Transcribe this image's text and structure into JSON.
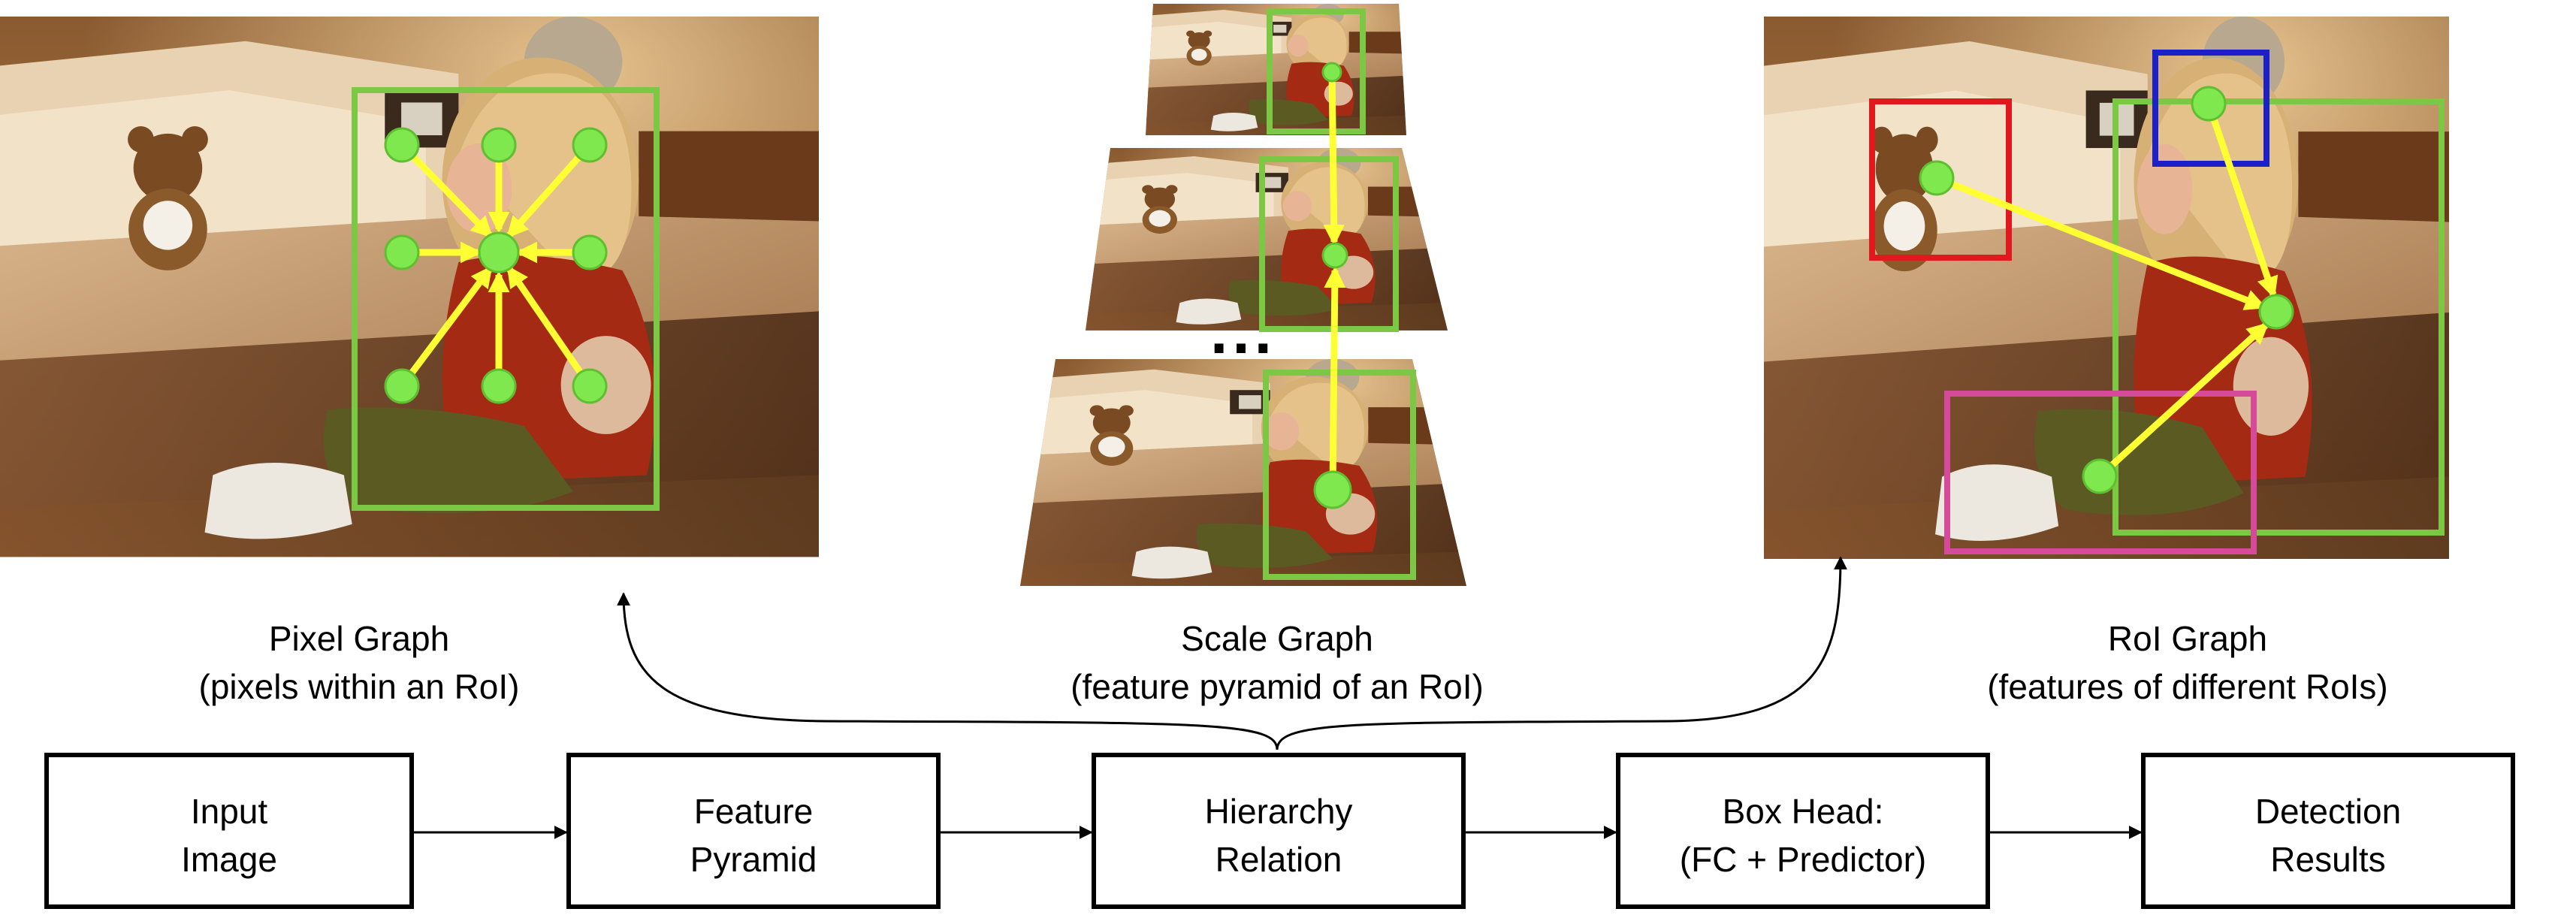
{
  "figure": {
    "panels": {
      "pixel": {
        "title": "Pixel Graph",
        "subtitle": "(pixels within an RoI)"
      },
      "scale": {
        "title": "Scale Graph",
        "subtitle": "(feature pyramid of an RoI)",
        "ellipsis": "..."
      },
      "roi": {
        "title": "RoI Graph",
        "subtitle": "(features of different RoIs)"
      }
    },
    "pipeline": [
      {
        "line1": "Input",
        "line2": "Image"
      },
      {
        "line1": "Feature",
        "line2": "Pyramid"
      },
      {
        "line1": "Hierarchy",
        "line2": "Relation"
      },
      {
        "line1": "Box Head:",
        "line2": "(FC + Predictor)"
      },
      {
        "line1": "Detection",
        "line2": "Results"
      }
    ],
    "colors": {
      "roi_box": "#7cc844",
      "node": "#7ee84e",
      "arrow": "#ffff33",
      "red_box": "#e0191f",
      "blue_box": "#1c20c8",
      "pink_box": "#d64a9a"
    }
  }
}
